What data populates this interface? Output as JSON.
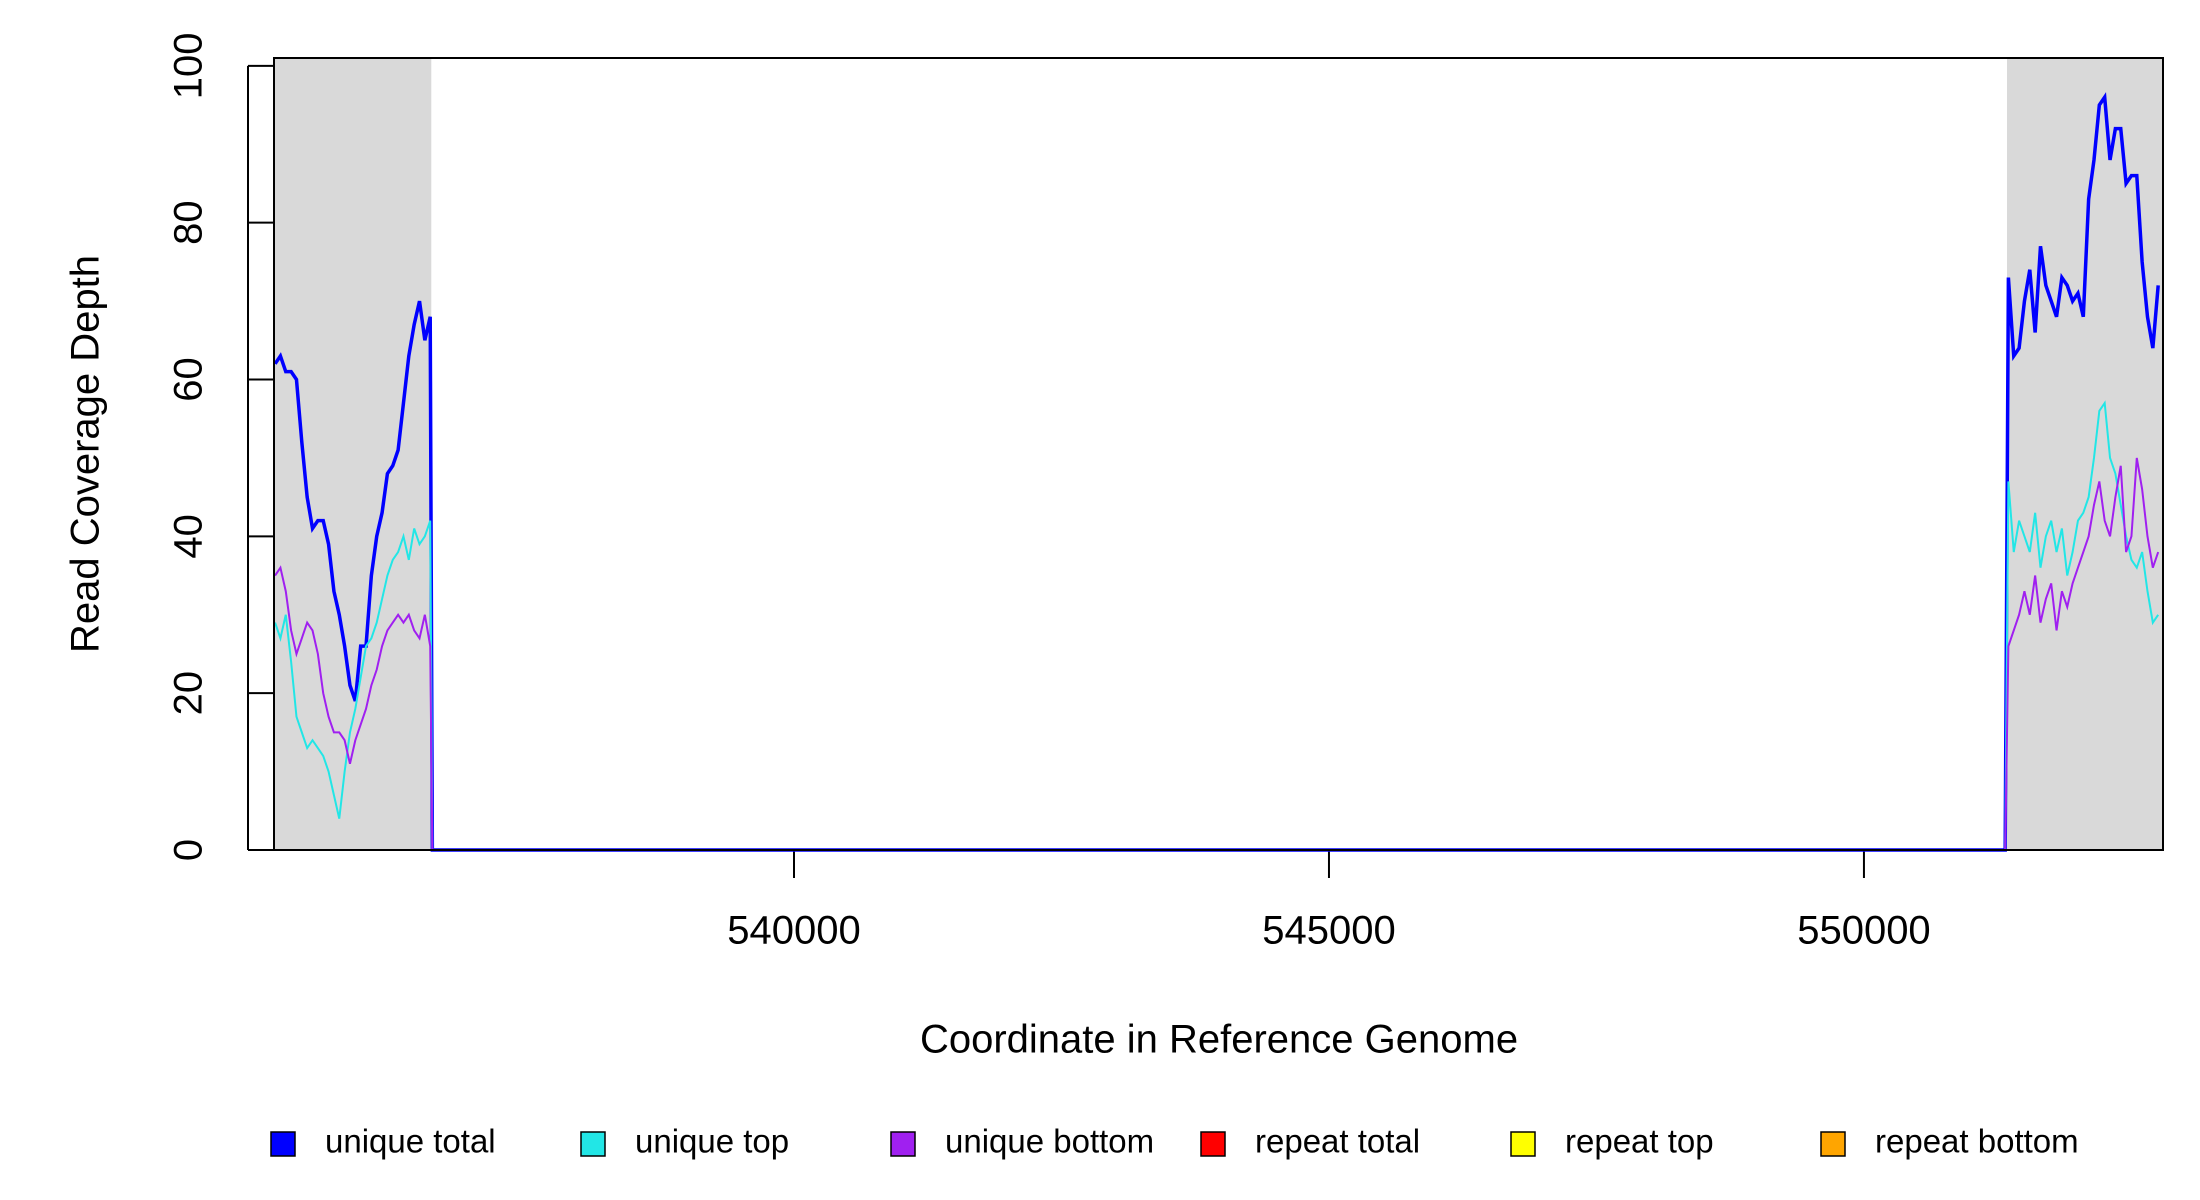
{
  "chart_data": {
    "type": "line",
    "x_label": "Coordinate in Reference Genome",
    "y_label": "Read Coverage Depth",
    "xlim": [
      535140,
      552795
    ],
    "ylim": [
      0,
      101
    ],
    "xticks": [
      540000,
      545000,
      550000
    ],
    "yticks": [
      0,
      20,
      40,
      60,
      80,
      100
    ],
    "legend": "bottom",
    "shaded_regions": [
      [
        535140,
        536610
      ],
      [
        551337,
        552795
      ]
    ],
    "shade_color": "#d9d9d9",
    "x": [
      535150,
      535200,
      535250,
      535300,
      535350,
      535400,
      535450,
      535500,
      535550,
      535600,
      535650,
      535700,
      535750,
      535800,
      535850,
      535900,
      535950,
      536000,
      536050,
      536100,
      536150,
      536200,
      536250,
      536300,
      536350,
      536400,
      536450,
      536500,
      536550,
      536600,
      536620,
      551320,
      551350,
      551400,
      551450,
      551500,
      551550,
      551600,
      551650,
      551700,
      551750,
      551800,
      551850,
      551900,
      551950,
      552000,
      552050,
      552100,
      552150,
      552200,
      552250,
      552300,
      552350,
      552400,
      552450,
      552500,
      552550,
      552600,
      552650,
      552700,
      552750
    ],
    "series": [
      {
        "name": "unique total",
        "color": "#0000ff",
        "values": [
          62,
          63,
          61,
          61,
          60,
          52,
          45,
          41,
          42,
          42,
          39,
          33,
          30,
          26,
          21,
          19,
          26,
          26,
          35,
          40,
          43,
          48,
          49,
          51,
          57,
          63,
          67,
          70,
          65,
          68,
          0,
          0,
          73,
          63,
          64,
          70,
          74,
          66,
          77,
          72,
          70,
          68,
          73,
          72,
          70,
          71,
          68,
          83,
          88,
          95,
          96,
          88,
          92,
          92,
          85,
          86,
          86,
          75,
          68,
          64,
          72
        ]
      },
      {
        "name": "unique top",
        "color": "#22e6e6",
        "values": [
          29,
          27,
          30,
          24,
          17,
          15,
          13,
          14,
          13,
          12,
          10,
          7,
          4,
          10,
          15,
          18,
          22,
          26,
          27,
          29,
          32,
          35,
          37,
          38,
          40,
          37,
          41,
          39,
          40,
          42,
          0,
          0,
          47,
          38,
          42,
          40,
          38,
          43,
          36,
          40,
          42,
          38,
          41,
          35,
          38,
          42,
          43,
          45,
          50,
          56,
          57,
          50,
          48,
          44,
          40,
          37,
          36,
          38,
          33,
          29,
          30
        ]
      },
      {
        "name": "unique bottom",
        "color": "#a020f0",
        "values": [
          35,
          36,
          33,
          28,
          25,
          27,
          29,
          28,
          25,
          20,
          17,
          15,
          15,
          14,
          11,
          14,
          16,
          18,
          21,
          23,
          26,
          28,
          29,
          30,
          29,
          30,
          28,
          27,
          30,
          26,
          0,
          0,
          26,
          28,
          30,
          33,
          30,
          35,
          29,
          32,
          34,
          28,
          33,
          31,
          34,
          36,
          38,
          40,
          44,
          47,
          42,
          40,
          45,
          49,
          38,
          40,
          50,
          46,
          40,
          36,
          38
        ]
      },
      {
        "name": "repeat total",
        "color": "#ff0000",
        "values": [
          0,
          0,
          0,
          0,
          0,
          0,
          0,
          0,
          0,
          0,
          0,
          0,
          0,
          0,
          0,
          0,
          0,
          0,
          0,
          0,
          0,
          0,
          0,
          0,
          0,
          0,
          0,
          0,
          0,
          0,
          0,
          0,
          0,
          0,
          0,
          0,
          0,
          0,
          0,
          0,
          0,
          0,
          0,
          0,
          0,
          0,
          0,
          0,
          0,
          0,
          0,
          0,
          0,
          0,
          0,
          0,
          0,
          0,
          0,
          0,
          0
        ]
      },
      {
        "name": "repeat top",
        "color": "#ffff00",
        "values": [
          0,
          0,
          0,
          0,
          0,
          0,
          0,
          0,
          0,
          0,
          0,
          0,
          0,
          0,
          0,
          0,
          0,
          0,
          0,
          0,
          0,
          0,
          0,
          0,
          0,
          0,
          0,
          0,
          0,
          0,
          0,
          0,
          0,
          0,
          0,
          0,
          0,
          0,
          0,
          0,
          0,
          0,
          0,
          0,
          0,
          0,
          0,
          0,
          0,
          0,
          0,
          0,
          0,
          0,
          0,
          0,
          0,
          0,
          0,
          0,
          0
        ]
      },
      {
        "name": "repeat bottom",
        "color": "#ffa500",
        "values": [
          0,
          0,
          0,
          0,
          0,
          0,
          0,
          0,
          0,
          0,
          0,
          0,
          0,
          0,
          0,
          0,
          0,
          0,
          0,
          0,
          0,
          0,
          0,
          0,
          0,
          0,
          0,
          0,
          0,
          0,
          0,
          0,
          0,
          0,
          0,
          0,
          0,
          0,
          0,
          0,
          0,
          0,
          0,
          0,
          0,
          0,
          0,
          0,
          0,
          0,
          0,
          0,
          0,
          0,
          0,
          0,
          0,
          0,
          0,
          0,
          0
        ]
      }
    ]
  }
}
